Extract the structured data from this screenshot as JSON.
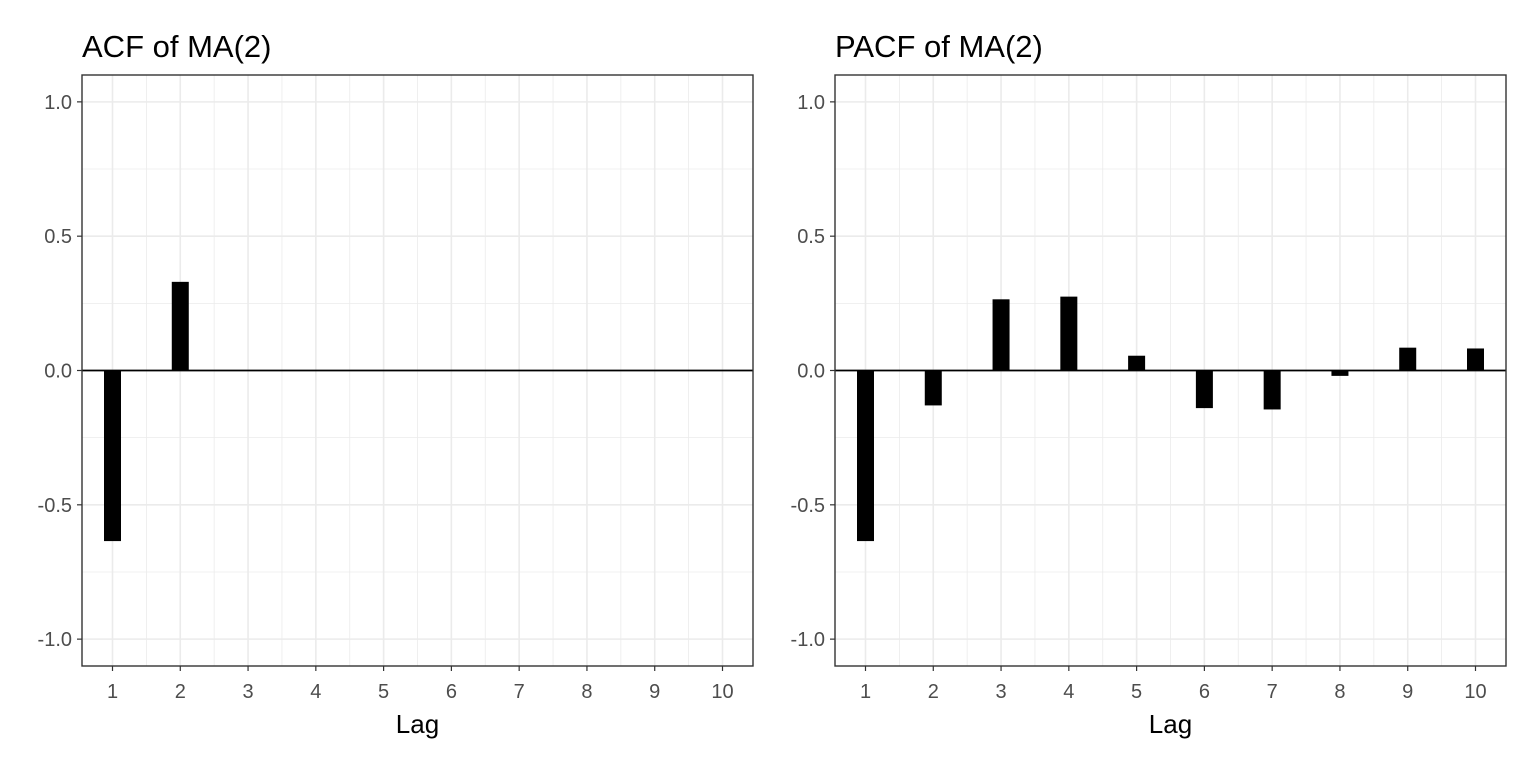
{
  "chart_data": [
    {
      "type": "bar",
      "title": "ACF of MA(2)",
      "xlabel": "Lag",
      "ylabel": "",
      "x": [
        1,
        2,
        3,
        4,
        5,
        6,
        7,
        8,
        9,
        10
      ],
      "values": [
        -0.635,
        0.33,
        0,
        0,
        0,
        0,
        0,
        0,
        0,
        0
      ],
      "ylim": [
        -1.1,
        1.1
      ],
      "xlim": [
        0.55,
        10.45
      ],
      "yticks": [
        -1.0,
        -0.5,
        0.0,
        0.5,
        1.0
      ],
      "ytick_labels": [
        "-1.0",
        "-0.5",
        "0.0",
        "0.5",
        "1.0"
      ],
      "xtick_labels": [
        "1",
        "2",
        "3",
        "4",
        "5",
        "6",
        "7",
        "8",
        "9",
        "10"
      ],
      "grid": true,
      "legend": "none"
    },
    {
      "type": "bar",
      "title": "PACF of MA(2)",
      "xlabel": "Lag",
      "ylabel": "",
      "x": [
        1,
        2,
        3,
        4,
        5,
        6,
        7,
        8,
        9,
        10
      ],
      "values": [
        -0.635,
        -0.13,
        0.265,
        0.275,
        0.055,
        -0.14,
        -0.145,
        -0.02,
        0.085,
        0.082
      ],
      "ylim": [
        -1.1,
        1.1
      ],
      "xlim": [
        0.55,
        10.45
      ],
      "yticks": [
        -1.0,
        -0.5,
        0.0,
        0.5,
        1.0
      ],
      "ytick_labels": [
        "-1.0",
        "-0.5",
        "0.0",
        "0.5",
        "1.0"
      ],
      "xtick_labels": [
        "1",
        "2",
        "3",
        "4",
        "5",
        "6",
        "7",
        "8",
        "9",
        "10"
      ],
      "grid": true,
      "legend": "none"
    }
  ],
  "colors": {
    "bar": "#000000",
    "zero_line": "#000000",
    "grid": "#ebebeb",
    "panel_border": "#333333",
    "title_text": "#000000",
    "tick_text": "#4d4d4d",
    "axis_title_text": "#000000"
  }
}
